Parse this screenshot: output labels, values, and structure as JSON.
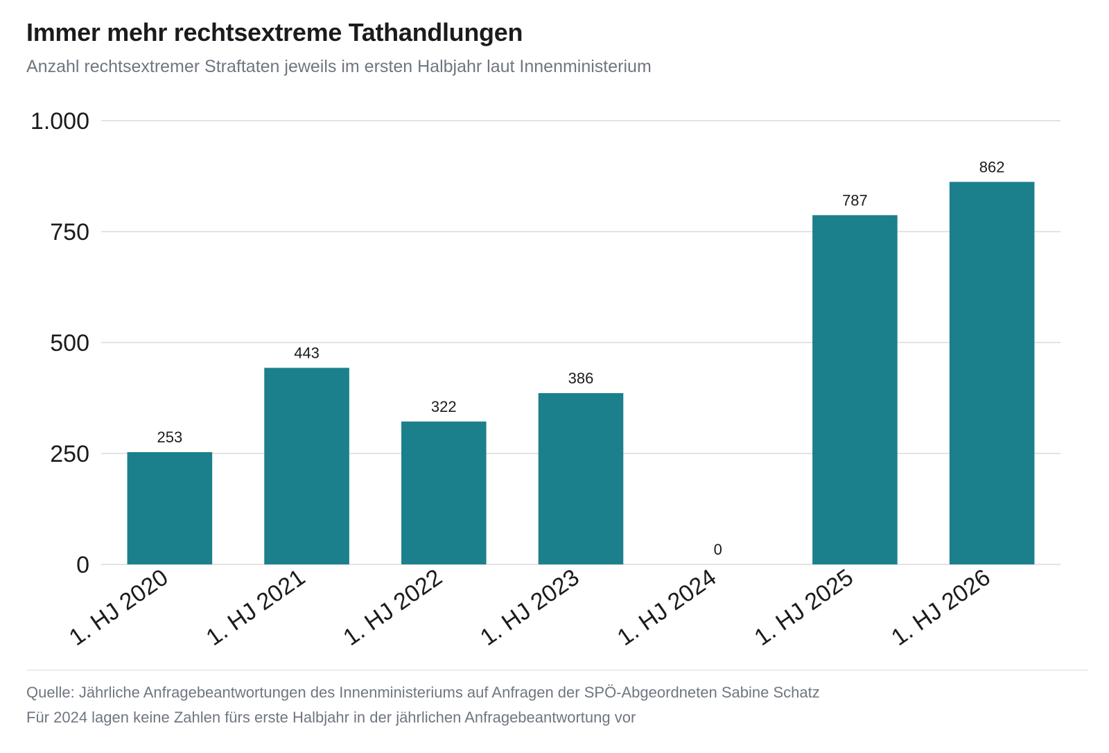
{
  "chart_data": {
    "type": "bar",
    "title": "Immer mehr rechtsextreme Tathandlungen",
    "subtitle": "Anzahl rechtsextremer Straftaten jeweils im ersten Halbjahr laut Innenministerium",
    "categories": [
      "1. HJ 2020",
      "1. HJ 2021",
      "1. HJ 2022",
      "1. HJ 2023",
      "1. HJ 2024",
      "1. HJ 2025",
      "1. HJ 2026"
    ],
    "values": [
      253,
      443,
      322,
      386,
      0,
      787,
      862
    ],
    "value_labels": [
      "253",
      "443",
      "322",
      "386",
      "0",
      "787",
      "862"
    ],
    "y_ticks": [
      0,
      250,
      500,
      750,
      1000
    ],
    "y_tick_labels": [
      "0",
      "250",
      "500",
      "750",
      "1.000"
    ],
    "ylim": [
      0,
      1000
    ],
    "xlabel": "",
    "ylabel": "",
    "grid": true,
    "legend": "none",
    "bar_color": "#1c7f8c"
  },
  "footer": {
    "source": "Quelle: Jährliche Anfragebeantwortungen des Innenministeriums auf Anfragen der SPÖ-Abgeordneten Sabine Schatz",
    "note": "Für 2024 lagen keine Zahlen fürs erste Halbjahr in der jährlichen Anfragebeantwortung vor"
  }
}
